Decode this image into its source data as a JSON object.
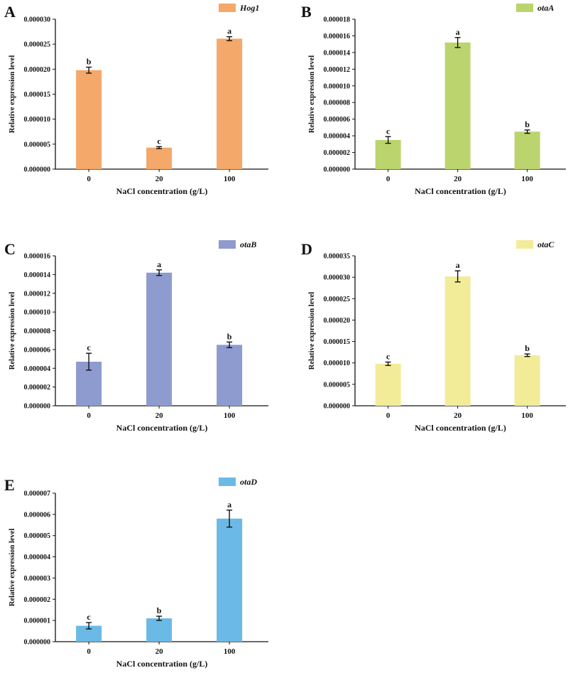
{
  "figure": {
    "x_label": "NaCl concentration (g/L)",
    "y_label": "Relative expression level"
  },
  "chart_data": [
    {
      "panel": "A",
      "type": "bar",
      "legend": "Hog1",
      "color": "#f4a86a",
      "categories": [
        "0",
        "20",
        "100"
      ],
      "values": [
        1.98e-05,
        4.3e-06,
        2.61e-05
      ],
      "errors": [
        6e-07,
        2e-07,
        4e-07
      ],
      "letters": [
        "b",
        "c",
        "a"
      ],
      "ylim": [
        0,
        3e-05
      ],
      "ticks": [
        "0.000000",
        "0.000005",
        "0.000010",
        "0.000015",
        "0.000020",
        "0.000025",
        "0.000030"
      ],
      "xlabel": "NaCl concentration (g/L)",
      "ylabel": "Relative expression level"
    },
    {
      "panel": "B",
      "type": "bar",
      "legend": "otaA",
      "color": "#bcd46e",
      "categories": [
        "0",
        "20",
        "100"
      ],
      "values": [
        3.5e-06,
        1.52e-05,
        4.5e-06
      ],
      "errors": [
        4e-07,
        6e-07,
        2e-07
      ],
      "letters": [
        "c",
        "a",
        "b"
      ],
      "ylim": [
        0,
        1.8e-05
      ],
      "ticks": [
        "0.000000",
        "0.000002",
        "0.000004",
        "0.000006",
        "0.000008",
        "0.000010",
        "0.000012",
        "0.000014",
        "0.000016",
        "0.000018"
      ],
      "xlabel": "NaCl concentration (g/L)",
      "ylabel": "Relative expression level"
    },
    {
      "panel": "C",
      "type": "bar",
      "legend": "otaB",
      "color": "#8e9bcf",
      "categories": [
        "0",
        "20",
        "100"
      ],
      "values": [
        4.7e-06,
        1.42e-05,
        6.5e-06
      ],
      "errors": [
        9e-07,
        3e-07,
        3e-07
      ],
      "letters": [
        "c",
        "a",
        "b"
      ],
      "ylim": [
        0,
        1.6e-05
      ],
      "ticks": [
        "0.000000",
        "0.000002",
        "0.000004",
        "0.000006",
        "0.000008",
        "0.000010",
        "0.000012",
        "0.000014",
        "0.000016"
      ],
      "xlabel": "NaCl concentration (g/L)",
      "ylabel": "Relative expression level"
    },
    {
      "panel": "D",
      "type": "bar",
      "legend": "otaC",
      "color": "#f2ec98",
      "categories": [
        "0",
        "20",
        "100"
      ],
      "values": [
        9.8e-06,
        3.02e-05,
        1.18e-05
      ],
      "errors": [
        4e-07,
        1.3e-06,
        3e-07
      ],
      "letters": [
        "c",
        "a",
        "b"
      ],
      "ylim": [
        0,
        3.5e-05
      ],
      "ticks": [
        "0.000000",
        "0.000005",
        "0.000010",
        "0.000015",
        "0.000020",
        "0.000025",
        "0.000030",
        "0.000035"
      ],
      "xlabel": "NaCl concentration (g/L)",
      "ylabel": "Relative expression level"
    },
    {
      "panel": "E",
      "type": "bar",
      "legend": "otaD",
      "color": "#6bb9e6",
      "categories": [
        "0",
        "20",
        "100"
      ],
      "values": [
        7.5e-07,
        1.1e-06,
        5.8e-06
      ],
      "errors": [
        1.5e-07,
        1e-07,
        4e-07
      ],
      "letters": [
        "c",
        "b",
        "a"
      ],
      "ylim": [
        0,
        7e-06
      ],
      "ticks": [
        "0.000000",
        "0.000001",
        "0.000002",
        "0.000003",
        "0.000004",
        "0.000005",
        "0.000006",
        "0.000007"
      ],
      "xlabel": "NaCl concentration (g/L)",
      "ylabel": "Relative expression level"
    }
  ]
}
